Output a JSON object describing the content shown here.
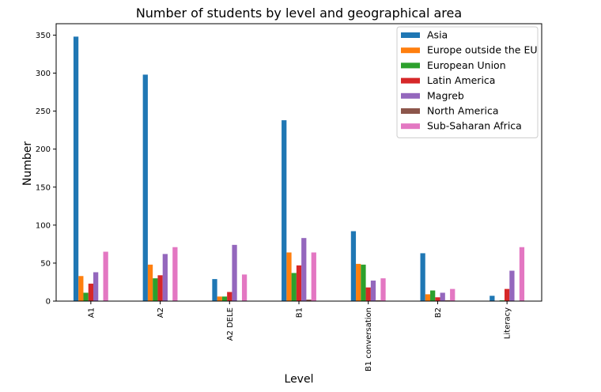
{
  "chart_data": {
    "type": "bar",
    "title": "Number of students by level and geographical area",
    "xlabel": "Level",
    "ylabel": "Number",
    "ylim": [
      0,
      365
    ],
    "yticks": [
      0,
      50,
      100,
      150,
      200,
      250,
      300,
      350
    ],
    "categories": [
      "A1",
      "A2",
      "A2 DELE",
      "B1",
      "B1 conversation",
      "B2",
      "Literacy"
    ],
    "legend_position": "top-right",
    "grid": false,
    "series": [
      {
        "name": "Asia",
        "color": "#1f77b4",
        "values": [
          348,
          298,
          29,
          238,
          92,
          63,
          7
        ]
      },
      {
        "name": "Europe outside the EU",
        "color": "#ff7f0e",
        "values": [
          33,
          48,
          6,
          64,
          49,
          9,
          0
        ]
      },
      {
        "name": "European Union",
        "color": "#2ca02c",
        "values": [
          11,
          30,
          6,
          37,
          48,
          14,
          1
        ]
      },
      {
        "name": "Latin America",
        "color": "#d62728",
        "values": [
          23,
          34,
          12,
          47,
          18,
          5,
          16
        ]
      },
      {
        "name": "Magreb",
        "color": "#9467bd",
        "values": [
          38,
          62,
          74,
          83,
          27,
          11,
          40
        ]
      },
      {
        "name": "North America",
        "color": "#8c564b",
        "values": [
          0,
          0,
          0,
          2,
          1,
          1,
          0
        ]
      },
      {
        "name": "Sub-Saharan Africa",
        "color": "#e377c2",
        "values": [
          65,
          71,
          35,
          64,
          30,
          16,
          71
        ]
      }
    ]
  }
}
